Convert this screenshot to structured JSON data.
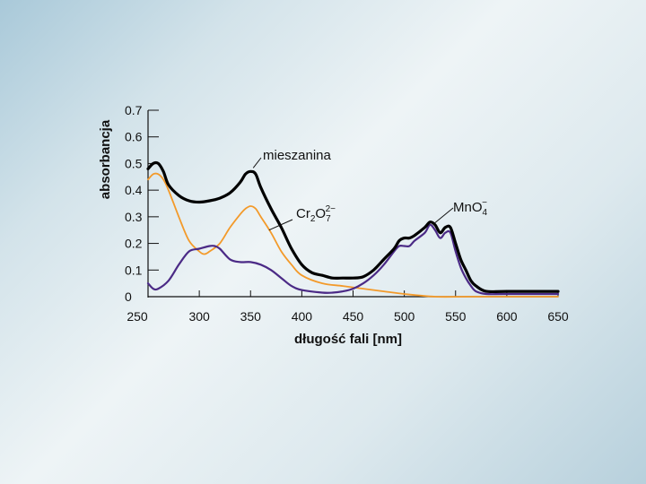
{
  "chart_data": {
    "type": "line",
    "title": "",
    "xlabel": "długość fali [nm]",
    "ylabel": "absorbancja",
    "xlim": [
      250,
      650
    ],
    "ylim": [
      0,
      0.7
    ],
    "xticks": [
      "250",
      "300",
      "350",
      "400",
      "450",
      "500",
      "550",
      "600",
      "650"
    ],
    "yticks": [
      "0",
      "0.1",
      "0.2",
      "0.3",
      "0.4",
      "0.5",
      "0.6",
      "0.7"
    ],
    "grid": false,
    "legend": "none",
    "series": [
      {
        "name": "mieszanina",
        "color": "#000000",
        "points": [
          [
            250,
            0.48
          ],
          [
            255,
            0.5
          ],
          [
            260,
            0.5
          ],
          [
            265,
            0.47
          ],
          [
            270,
            0.42
          ],
          [
            280,
            0.38
          ],
          [
            290,
            0.36
          ],
          [
            300,
            0.355
          ],
          [
            310,
            0.36
          ],
          [
            320,
            0.37
          ],
          [
            330,
            0.39
          ],
          [
            340,
            0.43
          ],
          [
            345,
            0.46
          ],
          [
            350,
            0.47
          ],
          [
            355,
            0.46
          ],
          [
            360,
            0.41
          ],
          [
            370,
            0.33
          ],
          [
            380,
            0.26
          ],
          [
            390,
            0.18
          ],
          [
            400,
            0.12
          ],
          [
            410,
            0.09
          ],
          [
            420,
            0.08
          ],
          [
            430,
            0.07
          ],
          [
            440,
            0.07
          ],
          [
            450,
            0.07
          ],
          [
            460,
            0.075
          ],
          [
            470,
            0.1
          ],
          [
            480,
            0.14
          ],
          [
            490,
            0.18
          ],
          [
            495,
            0.21
          ],
          [
            500,
            0.22
          ],
          [
            505,
            0.22
          ],
          [
            510,
            0.23
          ],
          [
            520,
            0.26
          ],
          [
            525,
            0.28
          ],
          [
            530,
            0.27
          ],
          [
            535,
            0.24
          ],
          [
            540,
            0.26
          ],
          [
            545,
            0.26
          ],
          [
            550,
            0.2
          ],
          [
            555,
            0.14
          ],
          [
            560,
            0.1
          ],
          [
            565,
            0.06
          ],
          [
            570,
            0.04
          ],
          [
            580,
            0.02
          ],
          [
            600,
            0.02
          ],
          [
            650,
            0.02
          ]
        ]
      },
      {
        "name": "Cr2O7 2-",
        "color": "#f39a2a",
        "points": [
          [
            250,
            0.44
          ],
          [
            255,
            0.46
          ],
          [
            260,
            0.46
          ],
          [
            265,
            0.44
          ],
          [
            270,
            0.4
          ],
          [
            280,
            0.3
          ],
          [
            290,
            0.21
          ],
          [
            300,
            0.17
          ],
          [
            305,
            0.16
          ],
          [
            310,
            0.17
          ],
          [
            320,
            0.2
          ],
          [
            330,
            0.26
          ],
          [
            340,
            0.31
          ],
          [
            345,
            0.33
          ],
          [
            350,
            0.34
          ],
          [
            355,
            0.33
          ],
          [
            360,
            0.3
          ],
          [
            370,
            0.24
          ],
          [
            380,
            0.17
          ],
          [
            390,
            0.12
          ],
          [
            400,
            0.08
          ],
          [
            420,
            0.05
          ],
          [
            440,
            0.04
          ],
          [
            460,
            0.03
          ],
          [
            480,
            0.02
          ],
          [
            500,
            0.01
          ],
          [
            530,
            0.0
          ],
          [
            560,
            0.0
          ],
          [
            600,
            0.0
          ],
          [
            650,
            0.0
          ]
        ]
      },
      {
        "name": "MnO4 -",
        "color": "#4b2a86",
        "points": [
          [
            250,
            0.05
          ],
          [
            255,
            0.03
          ],
          [
            260,
            0.03
          ],
          [
            270,
            0.06
          ],
          [
            280,
            0.12
          ],
          [
            290,
            0.17
          ],
          [
            300,
            0.18
          ],
          [
            310,
            0.19
          ],
          [
            315,
            0.19
          ],
          [
            320,
            0.18
          ],
          [
            330,
            0.14
          ],
          [
            340,
            0.13
          ],
          [
            350,
            0.13
          ],
          [
            360,
            0.12
          ],
          [
            370,
            0.1
          ],
          [
            380,
            0.07
          ],
          [
            390,
            0.04
          ],
          [
            400,
            0.025
          ],
          [
            420,
            0.015
          ],
          [
            430,
            0.015
          ],
          [
            440,
            0.02
          ],
          [
            450,
            0.03
          ],
          [
            460,
            0.05
          ],
          [
            470,
            0.08
          ],
          [
            480,
            0.12
          ],
          [
            490,
            0.17
          ],
          [
            495,
            0.19
          ],
          [
            500,
            0.19
          ],
          [
            505,
            0.19
          ],
          [
            510,
            0.21
          ],
          [
            520,
            0.24
          ],
          [
            525,
            0.27
          ],
          [
            530,
            0.25
          ],
          [
            535,
            0.22
          ],
          [
            540,
            0.24
          ],
          [
            545,
            0.24
          ],
          [
            550,
            0.17
          ],
          [
            555,
            0.11
          ],
          [
            560,
            0.07
          ],
          [
            565,
            0.04
          ],
          [
            570,
            0.02
          ],
          [
            580,
            0.01
          ],
          [
            600,
            0.01
          ],
          [
            650,
            0.01
          ]
        ]
      }
    ],
    "annotations": [
      {
        "id": "mix",
        "text": "mieszanina",
        "at": [
          350,
          0.47
        ]
      },
      {
        "id": "cr",
        "main": "Cr",
        "sub1": "2",
        "mid": "O",
        "sub2": "7",
        "sup": "2−",
        "at": [
          368,
          0.25
        ]
      },
      {
        "id": "mn",
        "main": "MnO",
        "sub": "4",
        "sup": "−",
        "at": [
          528,
          0.27
        ]
      }
    ]
  }
}
